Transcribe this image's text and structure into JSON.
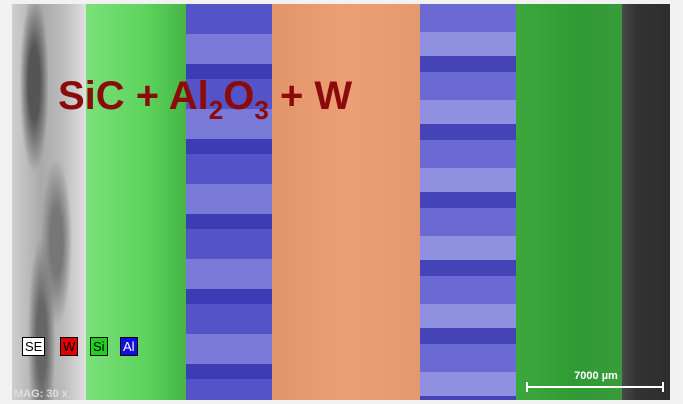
{
  "title": {
    "parts": [
      "SiC + Al",
      "2",
      "O",
      "3",
      " + W"
    ]
  },
  "legend": [
    {
      "label": "SE"
    },
    {
      "label": "W"
    },
    {
      "label": "Si"
    },
    {
      "label": "Al"
    }
  ],
  "scale_bar": "7000 µm",
  "magnification": "MAG: 30 x"
}
